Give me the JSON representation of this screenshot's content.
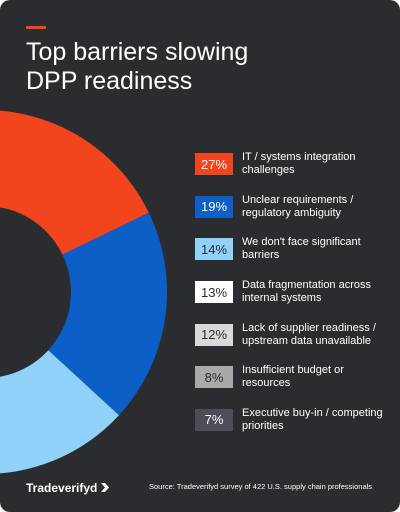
{
  "brand": "Tradeverifyd",
  "chart_data": {
    "type": "donut",
    "title": "Top barriers slowing DPP readiness",
    "categories": [
      "IT / systems integration challenges",
      "Unclear requirements / regulatory ambiguity",
      "We don't face significant barriers",
      "Data fragmentation across internal systems",
      "Lack of supplier readiness / upstream data unavailable",
      "Insufficient budget or resources",
      "Executive buy-in / competing priorities"
    ],
    "values": [
      27,
      19,
      14,
      13,
      12,
      8,
      7
    ],
    "value_labels": [
      "27%",
      "19%",
      "14%",
      "13%",
      "12%",
      "8%",
      "7%"
    ],
    "colors": [
      "#f2441d",
      "#0b5fc6",
      "#8fd1f8",
      "#ffffff",
      "#d9d9d9",
      "#a9a9a9",
      "#4b4e56"
    ],
    "source": "Source: Tradeverifyd survey of 422 U.S. supply chain professionals"
  }
}
